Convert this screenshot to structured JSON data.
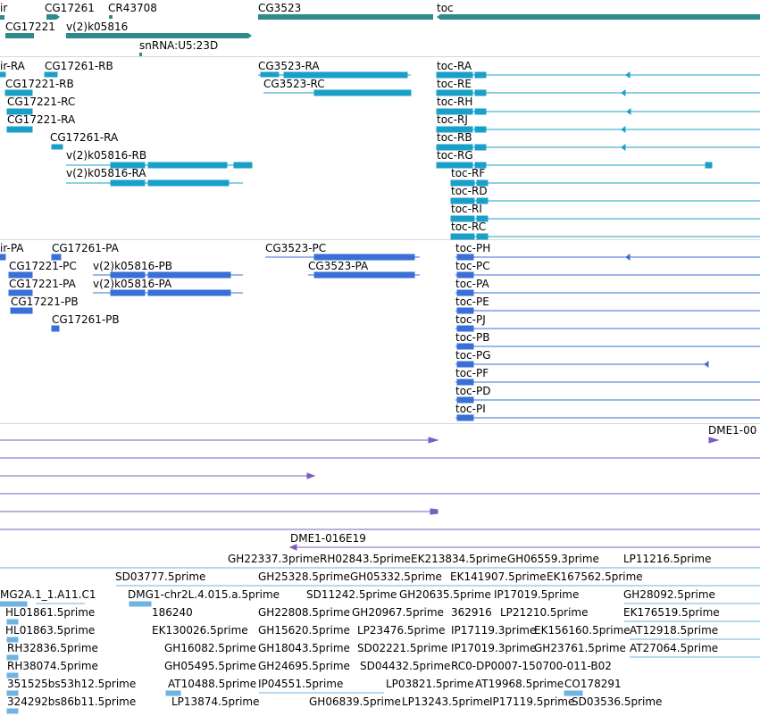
{
  "genes_track": {
    "labels": [
      "ir",
      "CG17261",
      "CR43708",
      "CG3523",
      "toc",
      "CG17221",
      "v(2)k05816",
      "snRNA:U5:23D"
    ]
  },
  "transcripts_track": {
    "labels": [
      "ir-RA",
      "CG17261-RB",
      "CG3523-RA",
      "toc-RA",
      "CG17221-RB",
      "CG3523-RC",
      "toc-RE",
      "CG17221-RC",
      "toc-RH",
      "CG17221-RA",
      "toc-RJ",
      "CG17261-RA",
      "toc-RB",
      "v(2)k05816-RB",
      "toc-RG",
      "v(2)k05816-RA",
      "toc-RF",
      "toc-RD",
      "toc-RI",
      "toc-RC"
    ]
  },
  "proteins_track": {
    "labels": [
      "ir-PA",
      "CG17261-PA",
      "CG3523-PC",
      "toc-PH",
      "CG17221-PC",
      "v(2)k05816-PB",
      "CG3523-PA",
      "toc-PC",
      "CG17221-PA",
      "v(2)k05816-PA",
      "toc-PA",
      "CG17221-PB",
      "toc-PE",
      "CG17261-PB",
      "toc-PJ",
      "toc-PB",
      "toc-PG",
      "toc-PF",
      "toc-PD",
      "toc-PI"
    ]
  },
  "insertions_track": {
    "labels": [
      "DME1-00",
      "DME1-016E19"
    ]
  },
  "est_track": {
    "labels": [
      "GH22337.3prime",
      "RH02843.5prime",
      "EK213834.5prime",
      "GH06559.3prime",
      "LP11216.5prime",
      "SD03777.5prime",
      "GH25328.5prime",
      "GH05332.5prime",
      "EK141907.5prime",
      "GH06559.3prime",
      "EK167562.5prime",
      "MG2A.1_1.A11.C1",
      "DMG1-chr2L.4.015.a.5prime",
      "SD11242.5prime",
      "GH20635.5prime",
      "IP17019.5prime",
      "GH28092.5prime",
      "HL01861.5prime",
      "186240",
      "GH22808.5prime",
      "GH20967.5prime",
      "362916",
      "LP21210.5prime",
      "EK176519.5prime",
      "HL01863.5prime",
      "EK130026.5prime",
      "GH15620.5prime",
      "LP23476.5prime",
      "IP17119.3prime",
      "EK156160.5prime",
      "AT12918.5prime",
      "RH32836.5prime",
      "GH16082.5prime",
      "GH18043.5prime",
      "SD02221.5prime",
      "IP17019.3prime",
      "GH23761.5prime",
      "AT27064.5prime",
      "RH38074.5prime",
      "GH05495.5prime",
      "GH24695.5prime",
      "SD04432.5prime",
      "RC0-DP0007-150700-011-B02",
      "351525bs53h12.5prime",
      "AT10488.5prime",
      "IP04551.5prime",
      "LP03821.5prime",
      "AT19968.5prime",
      "CO178291",
      "324292bs86b11.5prime",
      "LP13874.5prime",
      "GH06839.5prime",
      "LP13243.5prime",
      "IP17119.5prime",
      "SD03536.5prime"
    ]
  },
  "colors": {
    "gene": "#2e8b8b",
    "transcript": "#1aa0c8",
    "protein": "#3a6fd8",
    "insertion": "#7b5cc4",
    "est": "#6fb3e0",
    "separator": "#d8d8d8"
  }
}
